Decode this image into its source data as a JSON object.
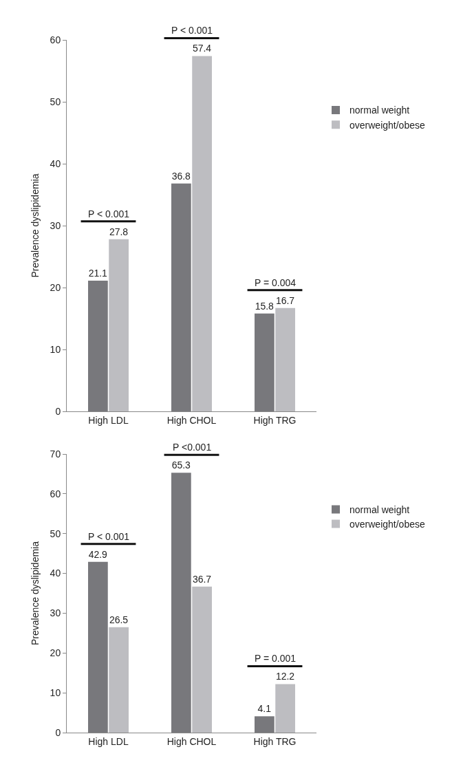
{
  "chart_data": [
    {
      "type": "bar",
      "ylabel": "Prevalence dyslipidemia",
      "categories": [
        "High LDL",
        "High CHOL",
        "High TRG"
      ],
      "series": [
        {
          "name": "normal weight",
          "color": "#78787c",
          "values": [
            21.1,
            36.8,
            15.8
          ]
        },
        {
          "name": "overweight/obese",
          "color": "#bdbdc1",
          "values": [
            27.8,
            57.4,
            16.7
          ]
        }
      ],
      "ylim": [
        0,
        60
      ],
      "yticks": [
        0,
        10,
        20,
        30,
        40,
        50,
        60
      ],
      "data_labels": true,
      "legend": "right",
      "annotations": [
        "P < 0.001",
        "P < 0.001",
        "P = 0.004"
      ]
    },
    {
      "type": "bar",
      "ylabel": "Prevalence dyslipidemia",
      "categories": [
        "High LDL",
        "High CHOL",
        "High TRG"
      ],
      "series": [
        {
          "name": "normal weight",
          "color": "#78787c",
          "values": [
            42.9,
            65.3,
            4.1
          ]
        },
        {
          "name": "overweight/obese",
          "color": "#bdbdc1",
          "values": [
            26.5,
            36.7,
            12.2
          ]
        }
      ],
      "ylim": [
        0,
        70
      ],
      "yticks": [
        0,
        10,
        20,
        30,
        40,
        50,
        60,
        70
      ],
      "data_labels": true,
      "legend": "right",
      "annotations": [
        "P < 0.001",
        "P <0.001",
        "P = 0.001"
      ]
    }
  ]
}
